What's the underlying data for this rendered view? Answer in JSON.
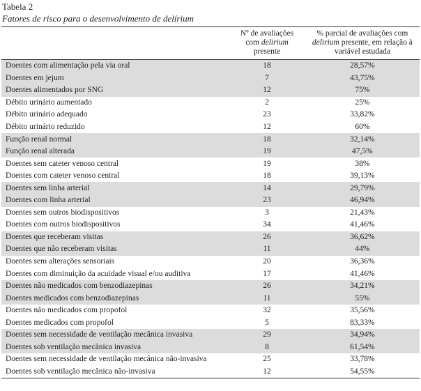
{
  "caption": "Tabela 2",
  "subtitle": "Fatores de risco para o desenvolvimento de delírium",
  "header": [
    [
      "Nº de avaliações",
      "com ",
      "delirium",
      " presente"
    ],
    [
      "% parcial de avaliações com",
      "delirium",
      " presente, em relação à variável estudada"
    ]
  ],
  "groups": [
    [
      [
        "Doentes com alimentação pela via oral",
        "18",
        "28,57%"
      ],
      [
        "Doentes em jejum",
        "7",
        "43,75%"
      ],
      [
        "Doentes alimentados por SNG",
        "12",
        "75%"
      ]
    ],
    [
      [
        "Débito urinário aumentado",
        "2",
        "25%"
      ],
      [
        "Débito urinário adequado",
        "23",
        "33,82%"
      ],
      [
        "Débito urinário reduzido",
        "12",
        "60%"
      ]
    ],
    [
      [
        "Função renal normal",
        "18",
        "32,14%"
      ],
      [
        "Função renal alterada",
        "19",
        "47,5%"
      ]
    ],
    [
      [
        "Doentes sem cateter venoso central",
        "19",
        "38%"
      ],
      [
        "Doentes com cateter venoso central",
        "18",
        "39,13%"
      ]
    ],
    [
      [
        "Doentes sem linha arterial",
        "14",
        "29,79%"
      ],
      [
        "Doentes com linha arterial",
        "23",
        "46,94%"
      ]
    ],
    [
      [
        "Doentes sem outros biodispositivos",
        "3",
        "21,43%"
      ],
      [
        "Doentes com outros biodispositivos",
        "34",
        "41,46%"
      ]
    ],
    [
      [
        "Doentes que receberam visitas",
        "26",
        "36,62%"
      ],
      [
        "Doentes que não receberam visitas",
        "11",
        "44%"
      ]
    ],
    [
      [
        "Doentes sem alterações sensoriais",
        "20",
        "36,36%"
      ],
      [
        "Doentes com diminuição da acuidade visual e/ou auditiva",
        "17",
        "41,46%"
      ]
    ],
    [
      [
        "Doentes não medicados com benzodiazepinas",
        "26",
        "34,21%"
      ],
      [
        "Doentes medicados com benzodiazepinas",
        "11",
        "55%"
      ]
    ],
    [
      [
        "Doentes não medicados com propofol",
        "32",
        "35,56%"
      ],
      [
        "Doentes medicados com propofol",
        "5",
        "83,33%"
      ]
    ],
    [
      [
        "Doentes sem necessidade de ventilação mecânica invasiva",
        "29",
        "34,94%"
      ],
      [
        "Doentes sob ventilação mecânica invasiva",
        "8",
        "61,54%"
      ]
    ],
    [
      [
        "Doentes sem necessidade de ventilação mecânica não-invasiva",
        "25",
        "33,78%"
      ],
      [
        "Doentes sob ventilação mecânica não-invasiva",
        "12",
        "54,55%"
      ]
    ]
  ]
}
